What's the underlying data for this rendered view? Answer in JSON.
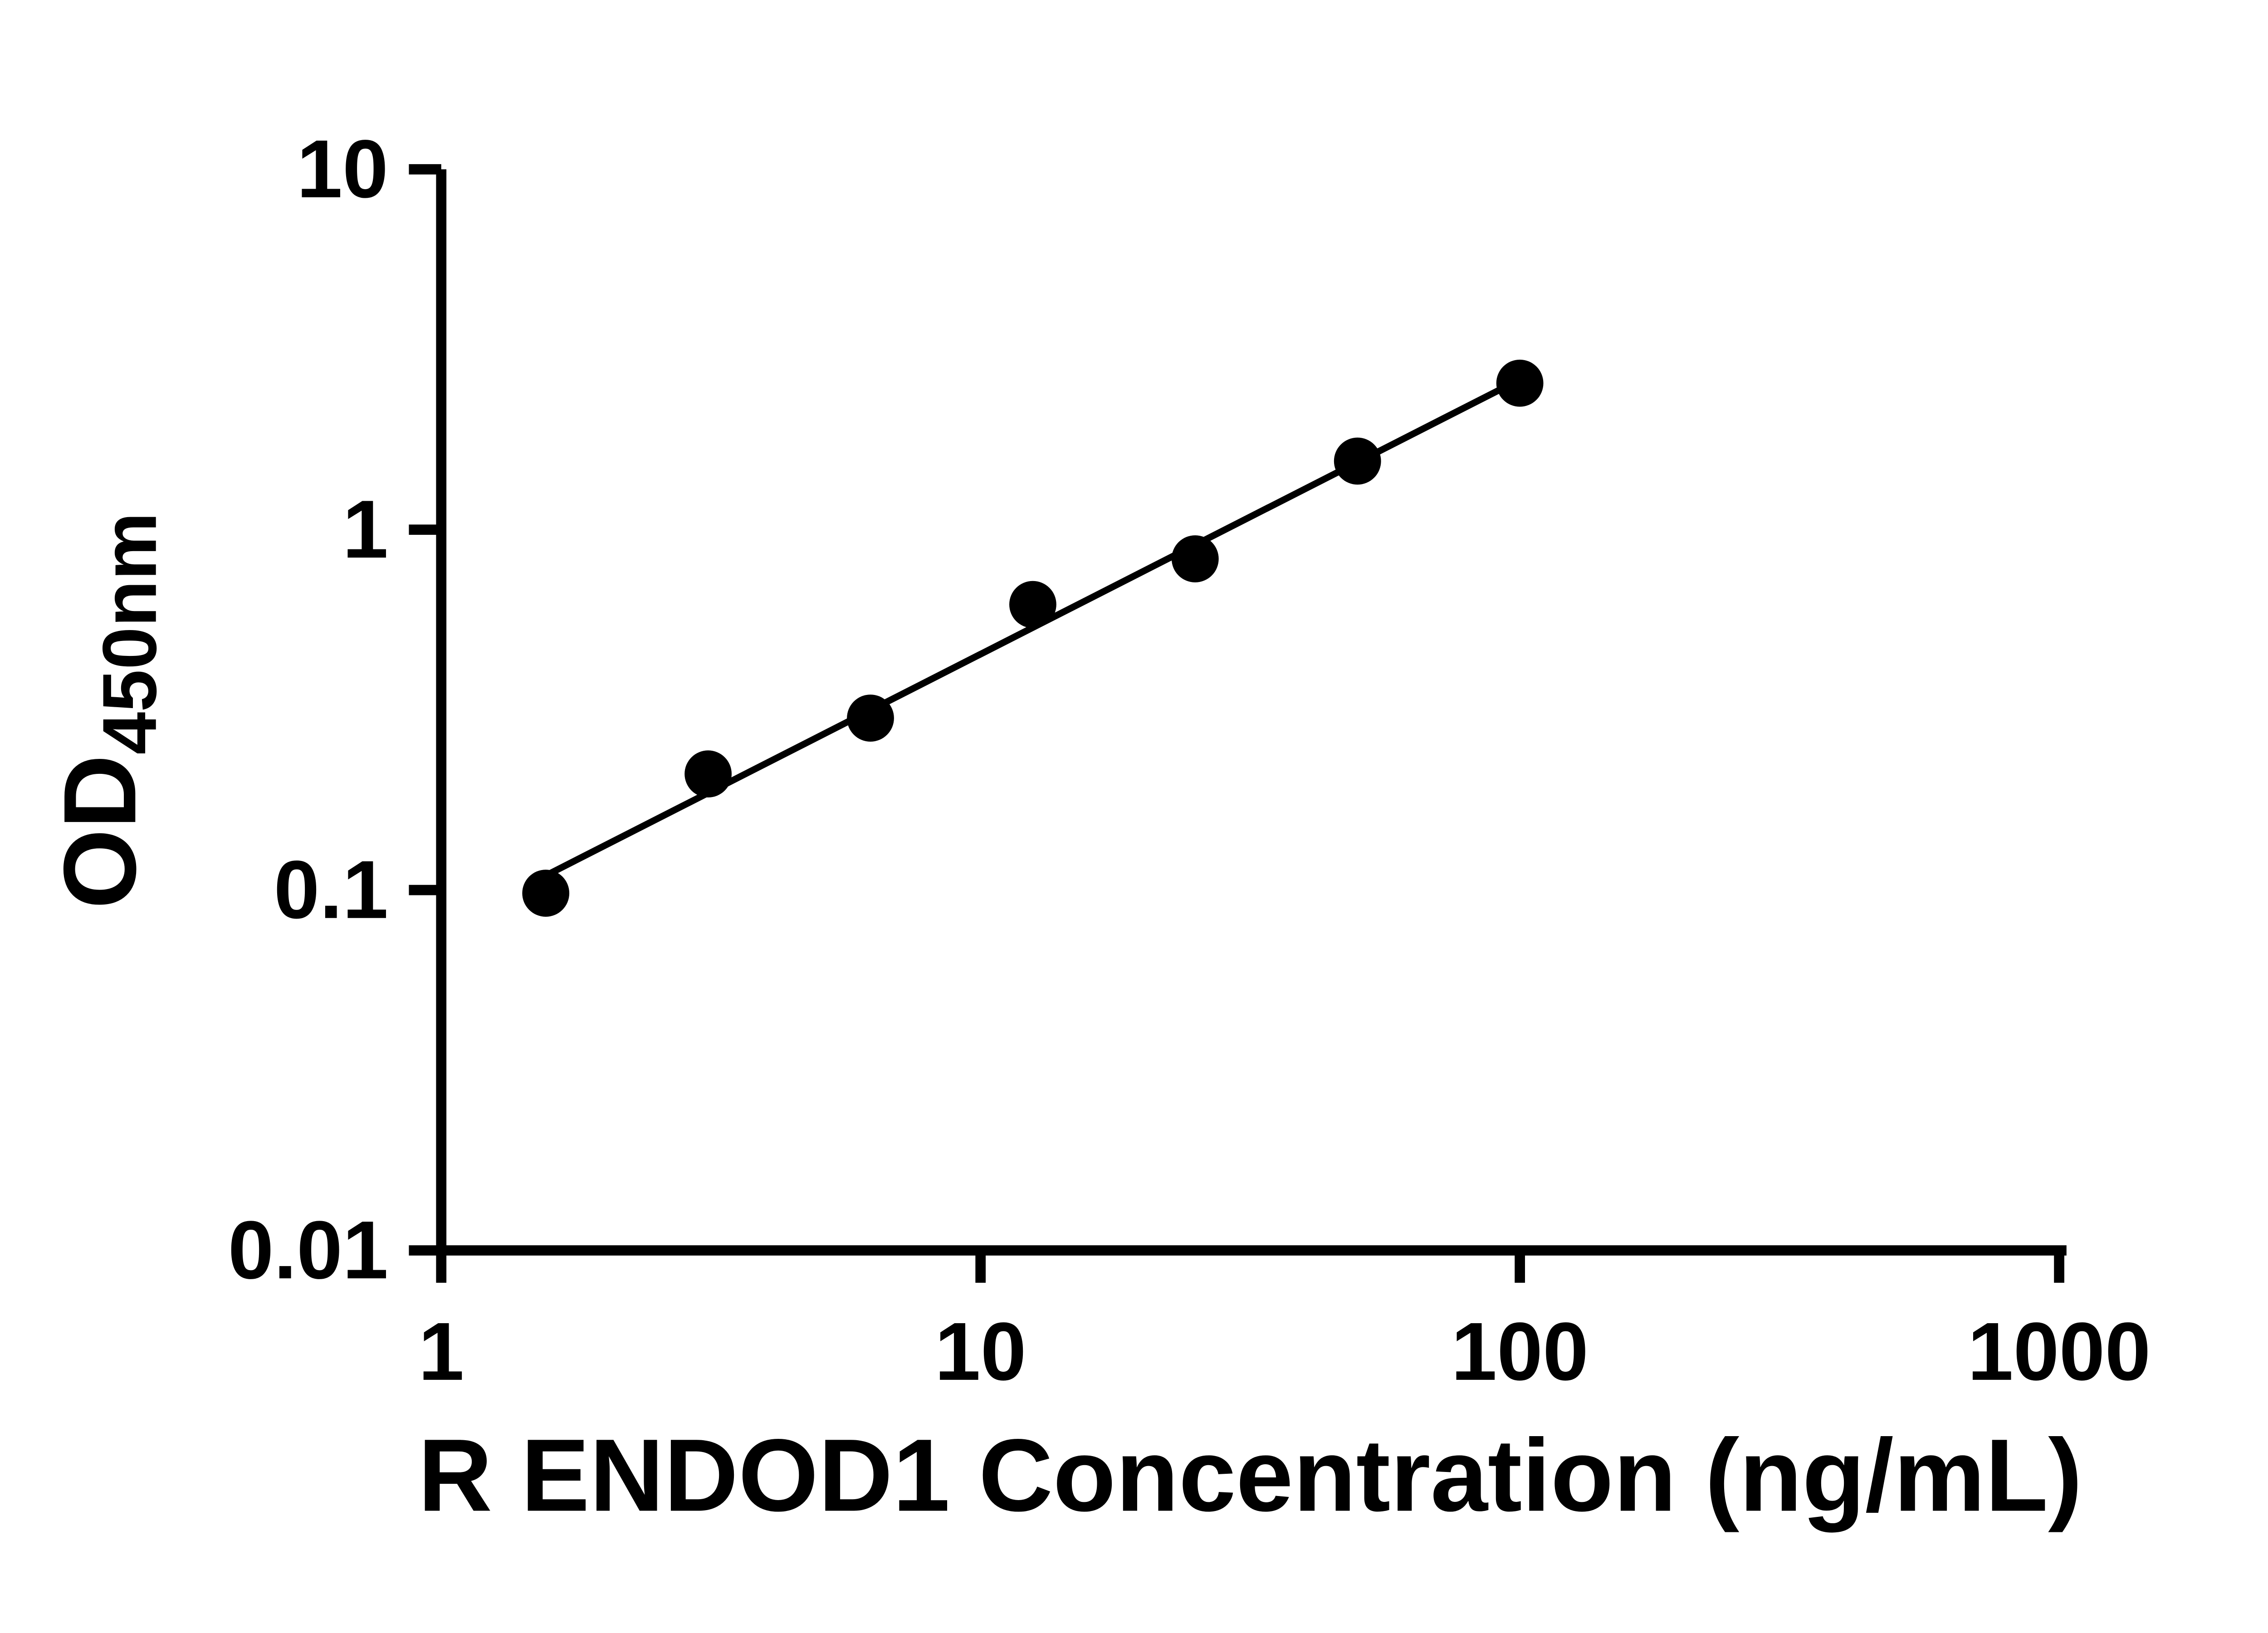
{
  "figure": {
    "background_color": "#ffffff",
    "foreground_color": "#000000"
  },
  "chart_data": {
    "type": "scatter",
    "title": "",
    "xlabel": "R ENDOD1 Concentration (ng/mL)",
    "ylabel_main": "OD",
    "ylabel_sub": "450nm",
    "x_scale": "log",
    "y_scale": "log",
    "xlim": [
      1,
      1000
    ],
    "ylim": [
      0.01,
      10
    ],
    "x_ticks": [
      1,
      10,
      100,
      1000
    ],
    "x_tick_labels": [
      "1",
      "10",
      "100",
      "1000"
    ],
    "y_ticks": [
      0.01,
      0.1,
      1,
      10
    ],
    "y_tick_labels": [
      "0.01",
      "0.1",
      "1",
      "10"
    ],
    "x": [
      1.5625,
      3.125,
      6.25,
      12.5,
      25,
      50,
      100
    ],
    "y": [
      0.098,
      0.21,
      0.3,
      0.62,
      0.83,
      1.55,
      2.55
    ],
    "trend_line": true,
    "legend": "none",
    "grid": false,
    "marker_color": "#000000",
    "line_color": "#000000"
  }
}
